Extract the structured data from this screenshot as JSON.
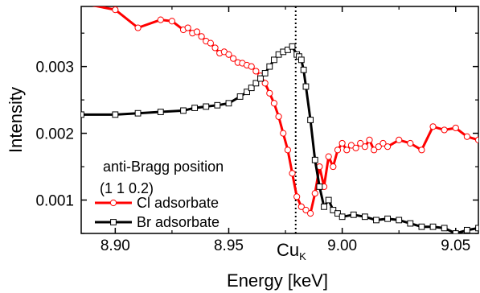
{
  "chart_data": {
    "type": "line",
    "title": "",
    "xlabel": "Energy [keV]",
    "ylabel": "Intensity",
    "xlim": [
      8.885,
      9.06
    ],
    "ylim": [
      0.0005,
      0.0039
    ],
    "x_ticks": [
      "8.90",
      "8.95",
      "9.00",
      "9.05"
    ],
    "x_tick_values": [
      8.9,
      8.95,
      9.0,
      9.05
    ],
    "y_ticks": [
      "0.001",
      "0.002",
      "0.003"
    ],
    "y_tick_values": [
      0.001,
      0.002,
      0.003
    ],
    "grid": false,
    "legend_placement": "bottom-left",
    "annotation": {
      "line1": "anti-Bragg position",
      "line2": "(1 1 0.2)"
    },
    "edge_marker": {
      "x": 8.9795,
      "label_main": "Cu",
      "label_sub": "K",
      "style": "dotted"
    },
    "series": [
      {
        "name": "Cl adsorbate",
        "color": "#ff0000",
        "marker": "circle",
        "x": [
          8.885,
          8.9,
          8.91,
          8.92,
          8.925,
          8.93,
          8.932,
          8.934,
          8.936,
          8.938,
          8.94,
          8.942,
          8.944,
          8.946,
          8.948,
          8.95,
          8.952,
          8.954,
          8.956,
          8.958,
          8.96,
          8.962,
          8.964,
          8.966,
          8.968,
          8.97,
          8.972,
          8.974,
          8.976,
          8.978,
          8.98,
          8.982,
          8.984,
          8.986,
          8.988,
          8.99,
          8.992,
          8.994,
          8.996,
          8.998,
          9.0,
          9.002,
          9.004,
          9.006,
          9.008,
          9.01,
          9.012,
          9.014,
          9.016,
          9.018,
          9.02,
          9.025,
          9.03,
          9.035,
          9.04,
          9.045,
          9.05,
          9.055,
          9.06
        ],
        "values": [
          0.00395,
          0.00385,
          0.00358,
          0.0037,
          0.00368,
          0.00355,
          0.00358,
          0.0035,
          0.00352,
          0.00345,
          0.00338,
          0.00335,
          0.00328,
          0.0032,
          0.00322,
          0.00318,
          0.00312,
          0.00306,
          0.00305,
          0.00302,
          0.003,
          0.00293,
          0.00286,
          0.00275,
          0.0026,
          0.00245,
          0.00225,
          0.002,
          0.00175,
          0.0014,
          0.00105,
          0.0009,
          0.00085,
          0.0008,
          0.0011,
          0.0015,
          0.0012,
          0.00165,
          0.0015,
          0.00175,
          0.00185,
          0.00175,
          0.00182,
          0.00178,
          0.00185,
          0.0018,
          0.0019,
          0.00175,
          0.0018,
          0.00185,
          0.0018,
          0.0019,
          0.00185,
          0.00175,
          0.0021,
          0.00205,
          0.00208,
          0.00195,
          0.0019
        ]
      },
      {
        "name": "Br adsorbate",
        "color": "#000000",
        "marker": "square",
        "x": [
          8.885,
          8.9,
          8.91,
          8.92,
          8.93,
          8.935,
          8.94,
          8.945,
          8.95,
          8.955,
          8.958,
          8.96,
          8.962,
          8.964,
          8.966,
          8.968,
          8.97,
          8.972,
          8.974,
          8.976,
          8.978,
          8.98,
          8.981,
          8.982,
          8.983,
          8.984,
          8.986,
          8.988,
          8.99,
          8.992,
          8.994,
          8.996,
          8.998,
          9.0,
          9.005,
          9.01,
          9.015,
          9.02,
          9.025,
          9.03,
          9.035,
          9.04,
          9.045,
          9.05,
          9.055,
          9.06
        ],
        "values": [
          0.00228,
          0.00228,
          0.0023,
          0.00232,
          0.00234,
          0.00238,
          0.0024,
          0.00242,
          0.00245,
          0.00255,
          0.00262,
          0.00268,
          0.00275,
          0.00282,
          0.0029,
          0.003,
          0.0031,
          0.00318,
          0.00322,
          0.00325,
          0.0033,
          0.00318,
          0.00315,
          0.0031,
          0.00295,
          0.0027,
          0.0022,
          0.0016,
          0.0012,
          0.0009,
          0.001,
          0.00085,
          0.0008,
          0.00075,
          0.00078,
          0.00075,
          0.0007,
          0.00072,
          0.0007,
          0.00065,
          0.0006,
          0.0006,
          0.00058,
          0.0005,
          0.00055,
          0.00058
        ]
      }
    ]
  }
}
